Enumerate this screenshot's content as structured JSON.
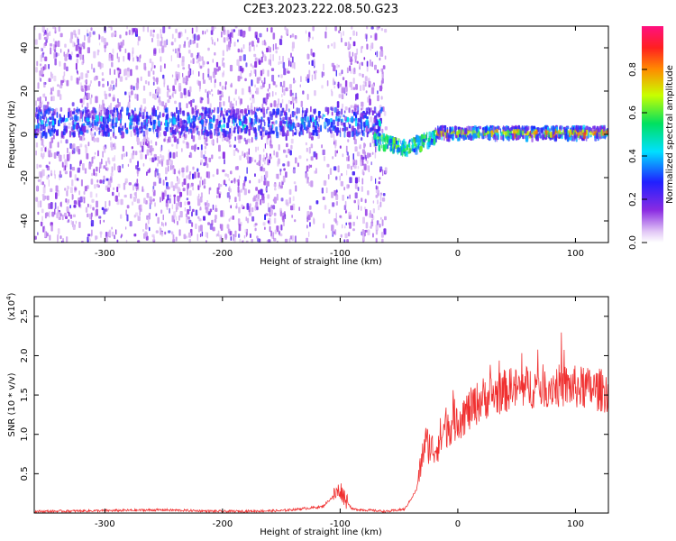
{
  "title": "C2E3.2023.222.08.50.G23",
  "colors": {
    "snr_line": "#f03030",
    "axis": "#000000",
    "background": "#ffffff"
  },
  "chart_data": [
    {
      "type": "heatmap",
      "xlabel": "Height of straight line (km)",
      "ylabel": "Frequency (Hz)",
      "xlim": [
        -360,
        128
      ],
      "ylim": [
        -50,
        50
      ],
      "xticks": [
        "-300",
        "-200",
        "-100",
        "0",
        "100"
      ],
      "yticks": [
        "-40",
        "-20",
        "0",
        "20",
        "40"
      ],
      "colorbar": {
        "label": "Normalized spectral amplitude",
        "range": [
          0.0,
          1.0
        ],
        "ticks": [
          "0.0",
          "0.2",
          "0.4",
          "0.6",
          "0.8"
        ],
        "colormap": "rainbow (white-purple-blue-cyan-green-yellow-red-pink)"
      },
      "features": [
        {
          "segment": "noisy",
          "x_range": [
            -360,
            -62
          ],
          "center_freq_hz": 6,
          "peak_amplitude": 0.45
        },
        {
          "segment": "transition",
          "x_range": [
            -72,
            -20
          ],
          "center_freq_hz": [
            -2,
            -6,
            0
          ],
          "peak_amplitude": 0.6
        },
        {
          "segment": "steady",
          "x_range": [
            -20,
            128
          ],
          "center_freq_hz": 1,
          "peak_amplitude": 0.85
        }
      ]
    },
    {
      "type": "line",
      "xlabel": "Height of straight line (km)",
      "ylabel": "SNR (10 * v/v)",
      "yscale_label": "(x10",
      "yscale_exp": "4",
      "yscale_close": ")",
      "xlim": [
        -360,
        128
      ],
      "ylim": [
        0,
        2.75
      ],
      "xticks": [
        "-300",
        "-200",
        "-100",
        "0",
        "100"
      ],
      "yticks": [
        "0.5",
        "1.0",
        "1.5",
        "2.0",
        "2.5"
      ],
      "series": [
        {
          "points": [
            [
              -360,
              0.02
            ],
            [
              -300,
              0.03
            ],
            [
              -250,
              0.04
            ],
            [
              -200,
              0.02
            ],
            [
              -150,
              0.03
            ],
            [
              -115,
              0.08
            ],
            [
              -100,
              0.3
            ],
            [
              -90,
              0.05
            ],
            [
              -60,
              0.02
            ],
            [
              -45,
              0.05
            ],
            [
              -35,
              0.3
            ],
            [
              -28,
              0.9
            ],
            [
              -20,
              0.8
            ],
            [
              -10,
              1.1
            ],
            [
              0,
              1.2
            ],
            [
              10,
              1.3
            ],
            [
              20,
              1.45
            ],
            [
              30,
              1.5
            ],
            [
              40,
              1.55
            ],
            [
              60,
              1.6
            ],
            [
              80,
              1.62
            ],
            [
              100,
              1.6
            ],
            [
              128,
              1.55
            ]
          ]
        }
      ]
    }
  ]
}
